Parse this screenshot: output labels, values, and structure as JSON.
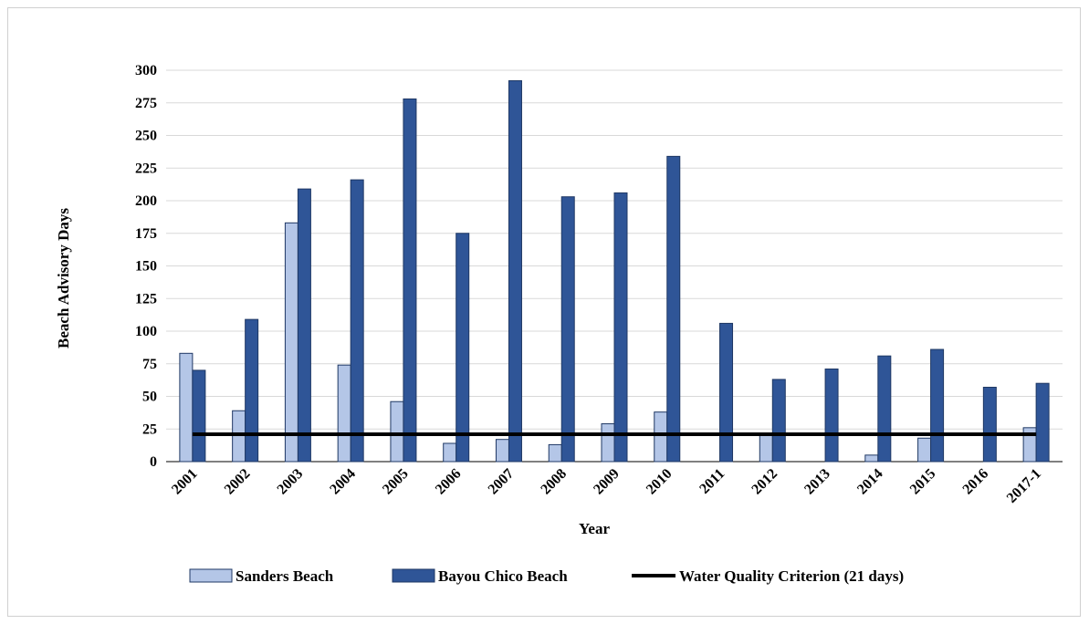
{
  "chart_data": {
    "type": "bar",
    "title": "",
    "xlabel": "Year",
    "ylabel": "Beach Advisory Days",
    "ylim": [
      0,
      300
    ],
    "yticks": [
      0,
      25,
      50,
      75,
      100,
      125,
      150,
      175,
      200,
      225,
      250,
      275,
      300
    ],
    "grid": true,
    "legend_position": "bottom",
    "categories": [
      "2001",
      "2002",
      "2003",
      "2004",
      "2005",
      "2006",
      "2007",
      "2008",
      "2009",
      "2010",
      "2011",
      "2012",
      "2013",
      "2014",
      "2015",
      "2016",
      "2017-1"
    ],
    "series": [
      {
        "name": "Sanders Beach",
        "color": "#b4c6e7",
        "values": [
          83,
          39,
          183,
          74,
          46,
          14,
          17,
          13,
          29,
          38,
          0,
          20,
          0,
          5,
          18,
          0,
          26
        ]
      },
      {
        "name": "Bayou Chico Beach",
        "color": "#2f5597",
        "values": [
          70,
          109,
          209,
          216,
          278,
          175,
          292,
          203,
          206,
          234,
          106,
          63,
          71,
          81,
          86,
          57,
          60
        ]
      }
    ],
    "reference_line": {
      "name": "Water Quality Criterion (21 days)",
      "value": 21,
      "color": "#000000"
    }
  }
}
